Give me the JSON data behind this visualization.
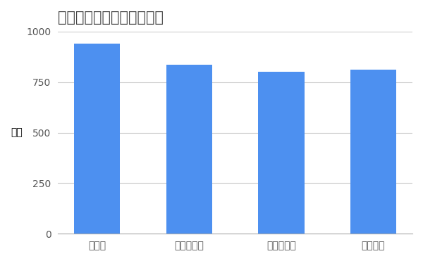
{
  "title": "競合他社との平均年収比較",
  "categories": [
    "味の素",
    "ハウス食品",
    "江崎グリコ",
    "日清食品"
  ],
  "values": [
    940,
    835,
    800,
    810
  ],
  "bar_color": "#4d90f0",
  "ylabel": "万円",
  "ylim": [
    0,
    1000
  ],
  "yticks": [
    0,
    250,
    500,
    750,
    1000
  ],
  "background_color": "#ffffff",
  "grid_color": "#cccccc",
  "title_fontsize": 15,
  "tick_fontsize": 10,
  "ylabel_fontsize": 10
}
